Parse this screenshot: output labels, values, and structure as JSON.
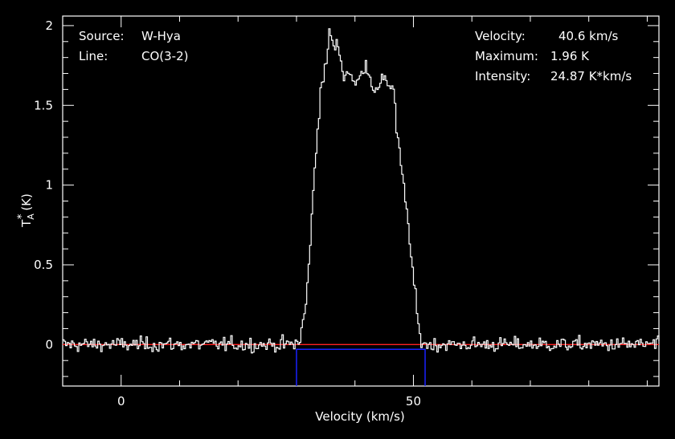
{
  "chart_data": {
    "type": "line",
    "source_label": "Source:",
    "source_value": "W-Hya",
    "line_label": "Line:",
    "line_value": "CO(3-2)",
    "velocity_label": "Velocity:",
    "velocity_value": "40.6 km/s",
    "maximum_label": "Maximum:",
    "maximum_value": "1.96 K",
    "intensity_label": "Intensity:",
    "intensity_value": "24.87 K*km/s",
    "xlabel": "Velocity (km/s)",
    "ylabel": "T",
    "ylabel_sub": "A",
    "ylabel_sup": "*",
    "ylabel_unit": "(K)",
    "xlim": [
      -10,
      92
    ],
    "ylim": [
      -0.26,
      2.06
    ],
    "xticks": [
      {
        "value": 0,
        "label": "0"
      },
      {
        "value": 50,
        "label": "50"
      }
    ],
    "yticks": [
      {
        "value": 0,
        "label": "0"
      },
      {
        "value": 0.5,
        "label": "0.5"
      },
      {
        "value": 1,
        "label": "1"
      },
      {
        "value": 1.5,
        "label": "1.5"
      },
      {
        "value": 2,
        "label": "2"
      }
    ],
    "x_minor_step": 10,
    "y_minor_step": 0.1,
    "baseline": 0,
    "line_window": [
      30,
      52
    ],
    "line_window_y": -0.03,
    "profile_knots": [
      [
        -10,
        0
      ],
      [
        29.5,
        0
      ],
      [
        30.5,
        0.03
      ],
      [
        31.5,
        0.25
      ],
      [
        32,
        0.5
      ],
      [
        32.5,
        0.8
      ],
      [
        33,
        1.1
      ],
      [
        33.5,
        1.35
      ],
      [
        34,
        1.6
      ],
      [
        35,
        1.75
      ],
      [
        35.5,
        1.98
      ],
      [
        36.3,
        1.85
      ],
      [
        37,
        1.88
      ],
      [
        38,
        1.68
      ],
      [
        39,
        1.72
      ],
      [
        40,
        1.62
      ],
      [
        41,
        1.7
      ],
      [
        41.8,
        1.77
      ],
      [
        42.5,
        1.67
      ],
      [
        43.5,
        1.58
      ],
      [
        44,
        1.6
      ],
      [
        45,
        1.7
      ],
      [
        45.5,
        1.63
      ],
      [
        46.5,
        1.62
      ],
      [
        47,
        1.35
      ],
      [
        48,
        1.05
      ],
      [
        49,
        0.75
      ],
      [
        49.8,
        0.45
      ],
      [
        50.5,
        0.2
      ],
      [
        51,
        0.04
      ],
      [
        52,
        0
      ],
      [
        92,
        0
      ]
    ],
    "channel_width": 0.25,
    "noise_rms": 0.045,
    "colors": {
      "background": "#000000",
      "axes": "#ffffff",
      "spectrum": "#ffffff",
      "baseline": "#ff2020",
      "window": "#1a22ff",
      "text": "#ffffff"
    }
  }
}
